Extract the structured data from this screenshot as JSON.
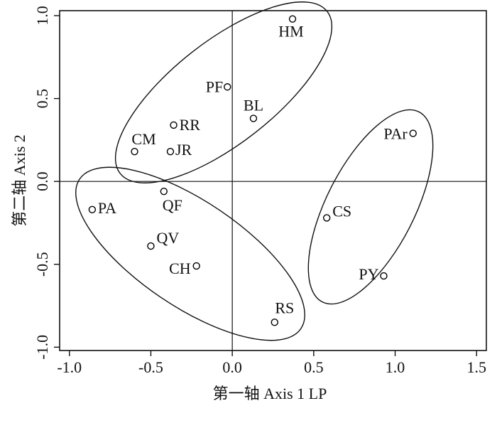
{
  "chart_data": {
    "type": "scatter",
    "x_label": "第一轴  Axis 1    LP",
    "y_label": "第二轴  Axis 2",
    "labels": [
      "HM",
      "PF",
      "BL",
      "RR",
      "CM",
      "JR",
      "PAr",
      "QF",
      "PA",
      "CS",
      "QV",
      "CH",
      "PY",
      "RS"
    ],
    "x": [
      0.37,
      -0.03,
      0.13,
      -0.36,
      -0.6,
      -0.38,
      1.11,
      -0.42,
      -0.86,
      0.58,
      -0.5,
      -0.22,
      0.93,
      0.26
    ],
    "values": [
      0.98,
      0.57,
      0.38,
      0.34,
      0.18,
      0.18,
      0.29,
      -0.06,
      -0.17,
      -0.22,
      -0.39,
      -0.51,
      -0.57,
      -0.85
    ],
    "color": "#000000",
    "xlim": [
      -1.06,
      1.56
    ],
    "ylim": [
      -1.02,
      1.03
    ],
    "xticks": [
      {
        "value": -1,
        "label": "-1.0"
      },
      -0.5,
      {
        "value": 0,
        "label": "0.0"
      },
      0.5,
      {
        "value": 1,
        "label": "1.0"
      },
      1.5
    ],
    "yticks": [
      {
        "value": -1,
        "label": "-1.0"
      },
      -0.5,
      {
        "value": 0,
        "label": "0.0"
      },
      0.5,
      {
        "value": 1,
        "label": "1.0"
      }
    ]
  }
}
